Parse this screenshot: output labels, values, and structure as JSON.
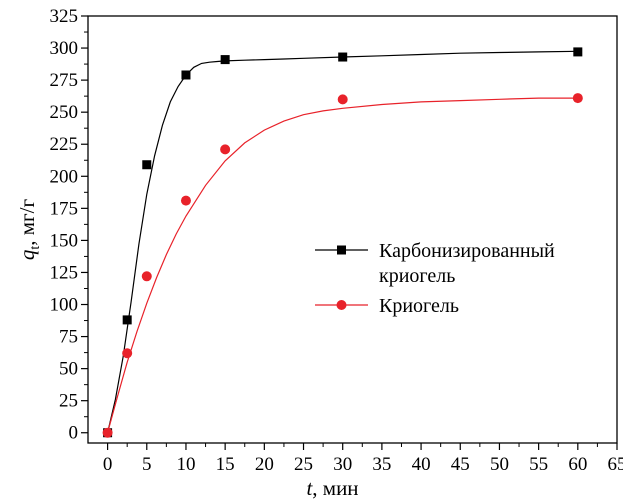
{
  "chart_data": {
    "type": "scatter",
    "xlabel": "t, мин",
    "ylabel": "q_t, мг/г",
    "xlim": [
      -2.5,
      65
    ],
    "ylim": [
      -8,
      325
    ],
    "x_ticks": [
      0,
      5,
      10,
      15,
      20,
      25,
      30,
      35,
      40,
      45,
      50,
      55,
      60,
      65
    ],
    "y_ticks": [
      0,
      25,
      50,
      75,
      100,
      125,
      150,
      175,
      200,
      225,
      250,
      275,
      300,
      325
    ],
    "grid": false,
    "legend_position": "right-middle",
    "series": [
      {
        "name": "Карбонизированный криогель",
        "name_lines": [
          "Карбонизированный",
          "криогель"
        ],
        "marker": "square",
        "color": "#000000",
        "x": [
          0,
          2.5,
          5,
          10,
          15,
          30,
          60
        ],
        "y": [
          0,
          88,
          209,
          279,
          291,
          293,
          297
        ],
        "fit_curve": {
          "x": [
            0,
            1,
            2,
            3,
            4,
            5,
            6,
            7,
            8,
            9,
            10,
            11,
            12,
            13,
            14,
            15,
            17.5,
            20,
            22.5,
            25,
            30,
            35,
            40,
            45,
            50,
            55,
            60
          ],
          "y": [
            0,
            26,
            60,
            102,
            147,
            186,
            216,
            240,
            258,
            270,
            279,
            285,
            288,
            289,
            289.5,
            290,
            290.5,
            291,
            291.5,
            292,
            293,
            294,
            295,
            296,
            296.5,
            297,
            297.5
          ]
        }
      },
      {
        "name": "Криогель",
        "marker": "circle",
        "color": "#e8222a",
        "x": [
          0,
          2.5,
          5,
          10,
          15,
          30,
          60
        ],
        "y": [
          0,
          62,
          122,
          181,
          221,
          260,
          261
        ],
        "fit_curve": {
          "x": [
            0,
            1.25,
            2.5,
            3.75,
            5,
            6.25,
            7.5,
            8.75,
            10,
            12.5,
            15,
            17.5,
            20,
            22.5,
            25,
            27.5,
            30,
            35,
            40,
            45,
            50,
            55,
            60
          ],
          "y": [
            0,
            28,
            55,
            79,
            101,
            121,
            139,
            155,
            169,
            193,
            212,
            226,
            236,
            243,
            248,
            251,
            253,
            256,
            258,
            259,
            260,
            261,
            261
          ]
        }
      }
    ]
  }
}
